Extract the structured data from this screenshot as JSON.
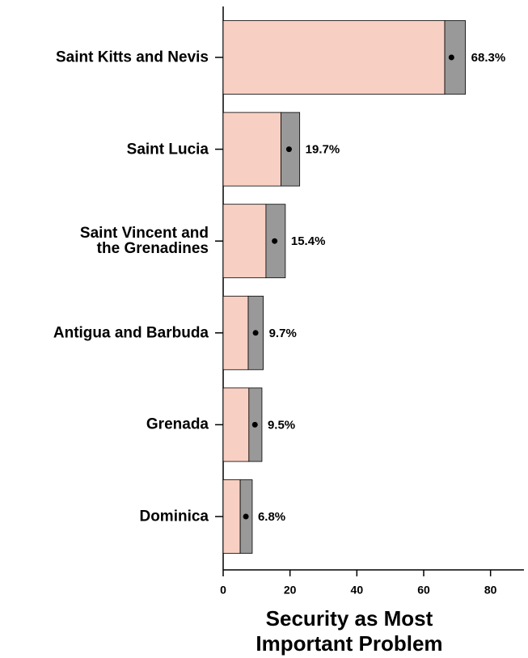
{
  "chart_data": {
    "type": "bar",
    "orientation": "horizontal",
    "x_label": "Security as Most\nImportant Problem",
    "categories": [
      "Saint Kitts and Nevis",
      "Saint Lucia",
      "Saint Vincent and\nthe Grenadines",
      "Antigua and Barbuda",
      "Grenada",
      "Dominica"
    ],
    "values": [
      68.3,
      19.7,
      15.4,
      9.7,
      9.5,
      6.8
    ],
    "value_labels": [
      "68.3%",
      "19.7%",
      "15.4%",
      "9.7%",
      "9.5%",
      "6.8%"
    ],
    "ci_low": [
      66.3,
      17.3,
      12.8,
      7.5,
      7.7,
      5.1
    ],
    "ci_high": [
      72.5,
      22.9,
      18.6,
      12.0,
      11.6,
      8.7
    ],
    "color": "#f8d0c3",
    "ci_color": "#999999",
    "xlim": [
      0,
      90
    ],
    "xticks": [
      0,
      20,
      40,
      60,
      80
    ]
  }
}
